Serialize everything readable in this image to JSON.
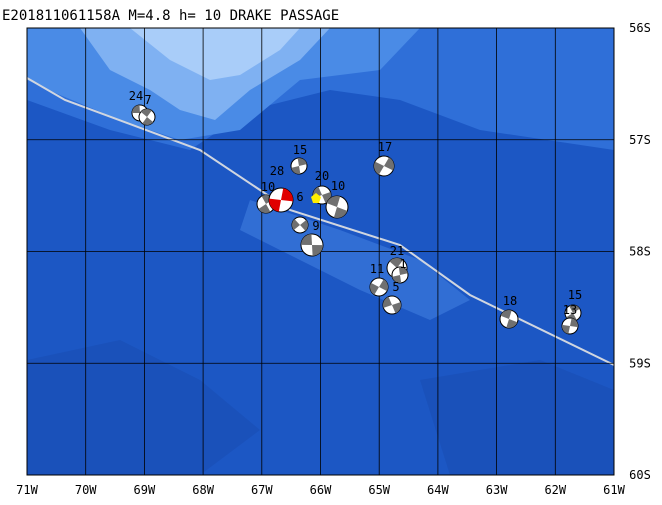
{
  "title": "E201811061158A M=4.8 h= 10 DRAKE PASSAGE",
  "lon_labels": [
    "71W",
    "70W",
    "69W",
    "68W",
    "67W",
    "66W",
    "65W",
    "64W",
    "63W",
    "62W",
    "61W"
  ],
  "lat_labels": [
    "56S",
    "57S",
    "58S",
    "59S",
    "60S"
  ],
  "events": [
    {
      "label": "24"
    },
    {
      "label": "7"
    },
    {
      "label": "15"
    },
    {
      "label": "17"
    },
    {
      "label": "20"
    },
    {
      "label": "10"
    },
    {
      "label": "10"
    },
    {
      "label": "28"
    },
    {
      "label": "6"
    },
    {
      "label": "9"
    },
    {
      "label": "21"
    },
    {
      "label": "1"
    },
    {
      "label": "11"
    },
    {
      "label": "5"
    },
    {
      "label": "18"
    },
    {
      "label": "15"
    },
    {
      "label": "13"
    }
  ]
}
